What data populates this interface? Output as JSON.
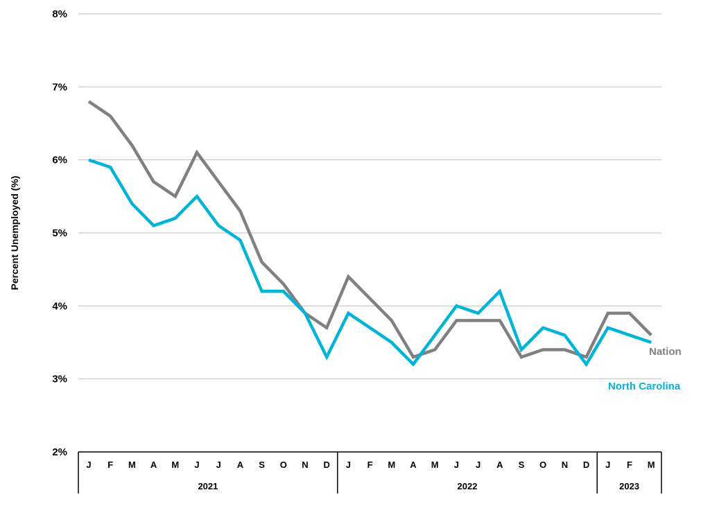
{
  "chart_data": {
    "type": "line",
    "ylabel": "Percent Unemployed (%)",
    "ylim": [
      2,
      8
    ],
    "y_ticks": [
      "2%",
      "3%",
      "4%",
      "5%",
      "6%",
      "7%",
      "8%"
    ],
    "y_tick_values": [
      2,
      3,
      4,
      5,
      6,
      7,
      8
    ],
    "grid": true,
    "categories": [
      "J",
      "F",
      "M",
      "A",
      "M",
      "J",
      "J",
      "A",
      "S",
      "O",
      "N",
      "D",
      "J",
      "F",
      "M",
      "A",
      "M",
      "J",
      "J",
      "A",
      "S",
      "O",
      "N",
      "D",
      "J",
      "F",
      "M"
    ],
    "year_groups": [
      {
        "label": "2021",
        "count": 12
      },
      {
        "label": "2022",
        "count": 12
      },
      {
        "label": "2023",
        "count": 3
      }
    ],
    "series": [
      {
        "name": "Nation",
        "color": "#808080",
        "values": [
          6.8,
          6.6,
          6.2,
          5.7,
          5.5,
          6.1,
          5.7,
          5.3,
          4.6,
          4.3,
          3.9,
          3.7,
          4.4,
          4.1,
          3.8,
          3.3,
          3.4,
          3.8,
          3.8,
          3.8,
          3.3,
          3.4,
          3.4,
          3.3,
          3.9,
          3.9,
          3.6
        ]
      },
      {
        "name": "North Carolina",
        "color": "#00B4D8",
        "values": [
          6.0,
          5.9,
          5.4,
          5.1,
          5.2,
          5.5,
          5.1,
          4.9,
          4.2,
          4.2,
          3.9,
          3.3,
          3.9,
          3.7,
          3.5,
          3.2,
          3.6,
          4.0,
          3.9,
          4.2,
          3.4,
          3.7,
          3.6,
          3.2,
          3.7,
          3.6,
          3.5
        ]
      }
    ]
  }
}
